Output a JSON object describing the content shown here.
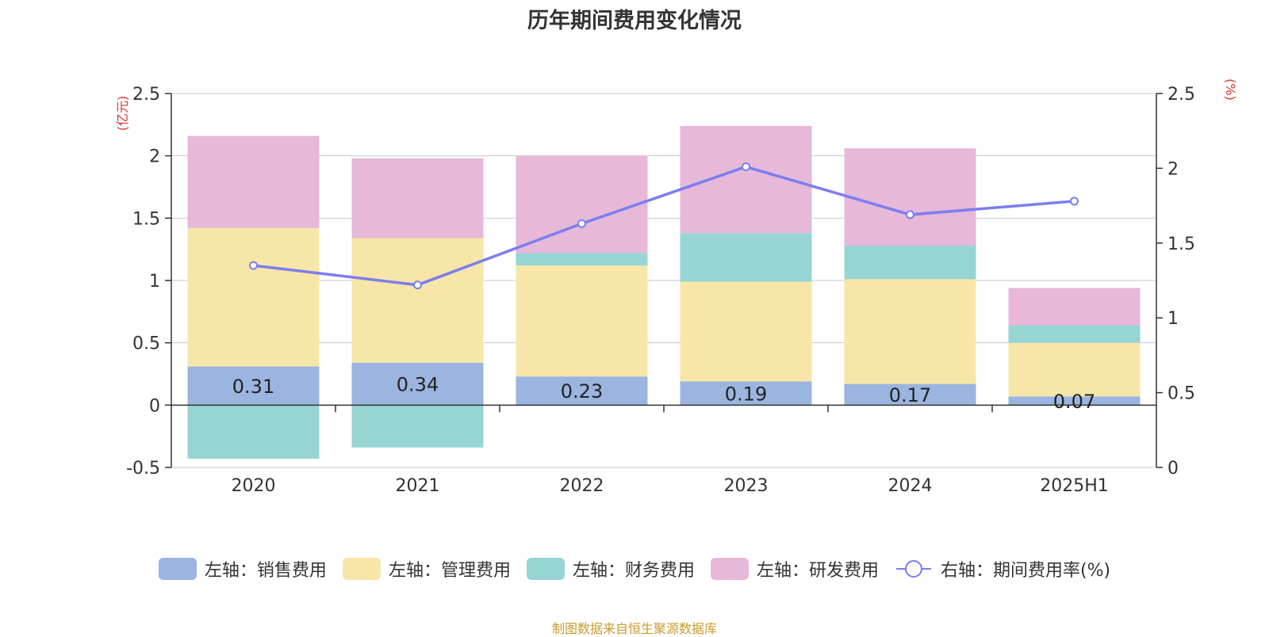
{
  "chart_data": {
    "type": "bar",
    "title": "历年期间费用变化情况",
    "categories": [
      "2020",
      "2021",
      "2022",
      "2023",
      "2024",
      "2025H1"
    ],
    "left_axis_unit": "(亿元)",
    "right_axis_unit": "(%)",
    "left_ylim": [
      -0.5,
      2.5
    ],
    "left_ticks": [
      "2.5",
      "2",
      "1.5",
      "1",
      "0.5",
      "0",
      "-0.5"
    ],
    "right_ylim": [
      0,
      2.5
    ],
    "right_ticks": [
      "2.5",
      "2",
      "1.5",
      "1",
      "0.5",
      "0"
    ],
    "series": [
      {
        "name": "左轴：销售费用",
        "type": "bar",
        "color": "#9bb5e0",
        "values": [
          0.31,
          0.34,
          0.23,
          0.19,
          0.17,
          0.07
        ],
        "labels": [
          "0.31",
          "0.34",
          "0.23",
          "0.19",
          "0.17",
          "0.07"
        ]
      },
      {
        "name": "左轴：管理费用",
        "type": "bar",
        "color": "#f8e6a8",
        "values": [
          1.11,
          1.0,
          0.89,
          0.8,
          0.84,
          0.43
        ]
      },
      {
        "name": "左轴：财务费用",
        "type": "bar",
        "color": "#97d4d4",
        "values": [
          -0.43,
          -0.34,
          0.1,
          0.39,
          0.27,
          0.14
        ]
      },
      {
        "name": "左轴：研发费用",
        "type": "bar",
        "color": "#e7b8d8",
        "values": [
          0.74,
          0.64,
          0.78,
          0.86,
          0.78,
          0.3
        ]
      },
      {
        "name": "右轴：期间费用率(%)",
        "type": "line",
        "axis": "right",
        "color": "#7b7ef0",
        "values": [
          1.35,
          1.22,
          1.63,
          2.01,
          1.69,
          1.78
        ]
      }
    ],
    "grid": true,
    "legend_position": "bottom"
  },
  "source": "制图数据来自恒生聚源数据库"
}
